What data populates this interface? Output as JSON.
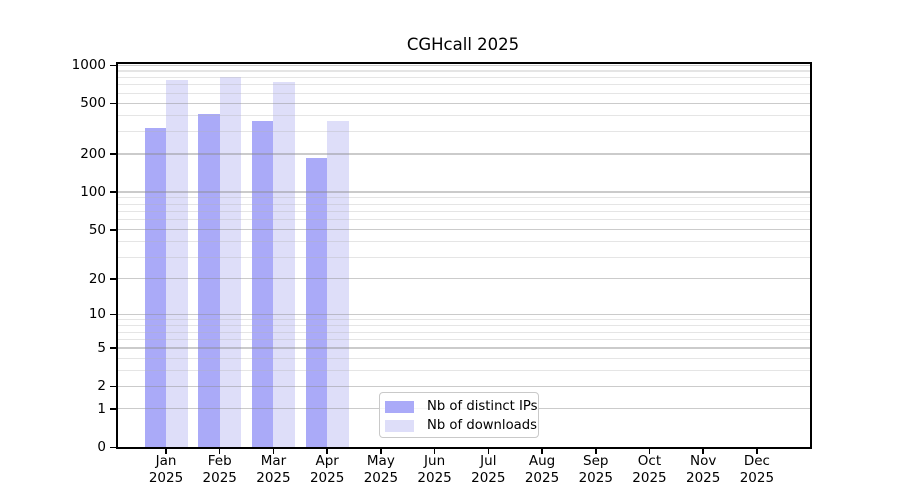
{
  "title": "CGHcall 2025",
  "colors": {
    "ips": "#aaaaf8",
    "downloads": "#dedef9",
    "grid_major": "rgba(140,140,140,0.45)",
    "grid_minor": "rgba(180,180,180,0.35)",
    "axis": "#000000",
    "background": "#ffffff"
  },
  "legend": {
    "items": [
      {
        "label": "Nb of distinct IPs",
        "series_key": "ips"
      },
      {
        "label": "Nb of downloads",
        "series_key": "downloads"
      }
    ]
  },
  "chart_data": {
    "type": "bar",
    "title": "CGHcall 2025",
    "categories": [
      "Jan 2025",
      "Feb 2025",
      "Mar 2025",
      "Apr 2025",
      "May 2025",
      "Jun 2025",
      "Jul 2025",
      "Aug 2025",
      "Sep 2025",
      "Oct 2025",
      "Nov 2025",
      "Dec 2025"
    ],
    "month_labels": [
      "Jan",
      "Feb",
      "Mar",
      "Apr",
      "May",
      "Jun",
      "Jul",
      "Aug",
      "Sep",
      "Oct",
      "Nov",
      "Dec"
    ],
    "year_label": "2025",
    "series": [
      {
        "name": "Nb of distinct IPs",
        "key": "ips",
        "values": [
          320,
          410,
          362,
          185,
          null,
          null,
          null,
          null,
          null,
          null,
          null,
          null
        ]
      },
      {
        "name": "Nb of downloads",
        "key": "downloads",
        "values": [
          765,
          800,
          740,
          363,
          null,
          null,
          null,
          null,
          null,
          null,
          null,
          null
        ]
      }
    ],
    "y_ticks": [
      0,
      1,
      2,
      5,
      10,
      20,
      50,
      100,
      200,
      500,
      1000
    ],
    "y_scale": "log10(value+1)",
    "ylim": [
      0,
      1000
    ],
    "xlabel": "",
    "ylabel": "",
    "grid": true,
    "grid_lines_above_bars": true,
    "legend_position": "bottom-center"
  }
}
